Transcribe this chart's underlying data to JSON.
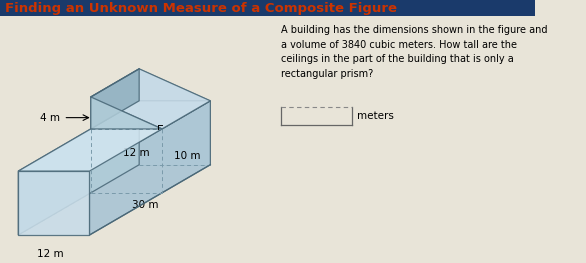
{
  "title": "Finding an Unknown Measure of a Composite Figure",
  "title_color": "#CC3300",
  "title_bg_color": "#1a3a6b",
  "bg_color": "#e8e4d8",
  "problem_text": "A building has the dimensions shown in the figure and\na volume of 3840 cubic meters. How tall are the\nceilings in the part of the building that is only a\nrectangular prism?",
  "answer_label": "meters",
  "dim_4m": "4 m",
  "dim_10m": "10 m",
  "dim_12m_top": "12 m",
  "dim_30m": "30 m",
  "dim_12m_bot": "12 m",
  "face_light": "#c8dce8",
  "face_mid": "#b0ccd8",
  "face_dark": "#90b0c0",
  "face_right": "#a8c4d4",
  "face_top_tri": "#d0e4ef",
  "edge_color": "#4a6878",
  "dash_color": "#7a9aaa",
  "arrow_color": "#222222",
  "text_color": "#222222"
}
